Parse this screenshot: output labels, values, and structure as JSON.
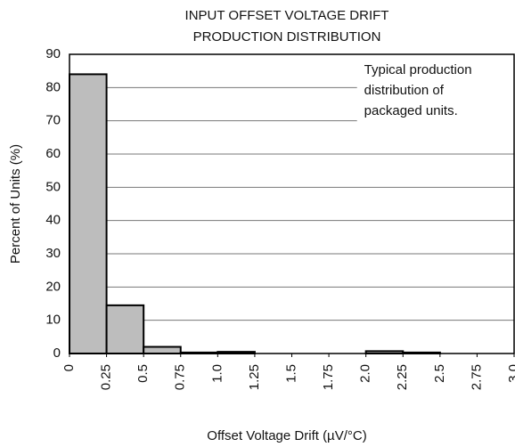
{
  "chart_data": {
    "type": "histogram",
    "title": [
      "INPUT OFFSET VOLTAGE DRIFT",
      "PRODUCTION DISTRIBUTION"
    ],
    "xlabel": "Offset Voltage Drift (µV/°C)",
    "ylabel": "Percent of Units (%)",
    "annotation": [
      "Typical production",
      "distribution of",
      "packaged units."
    ],
    "bins": [
      0,
      0.25,
      0.5,
      0.75,
      1.0,
      1.25,
      1.5,
      1.75,
      2.0,
      2.25,
      2.5,
      2.75,
      3.0
    ],
    "values": [
      84,
      14.5,
      2,
      0.3,
      0.5,
      0,
      0,
      0,
      0.7,
      0.3,
      0,
      0
    ],
    "color": "#bdbdbd",
    "xlim": [
      0,
      3.0
    ],
    "xticks": [
      0,
      0.25,
      0.5,
      0.75,
      {
        "value": 1.0,
        "label": "1.0"
      },
      1.25,
      1.5,
      1.75,
      {
        "value": 2.0,
        "label": "2.0"
      },
      2.25,
      2.5,
      2.75,
      {
        "value": 3.0,
        "label": "3.0"
      }
    ],
    "ylim": [
      0,
      90
    ],
    "yticks": [
      0,
      10,
      20,
      30,
      40,
      50,
      60,
      70,
      80,
      90
    ],
    "grid": true
  }
}
